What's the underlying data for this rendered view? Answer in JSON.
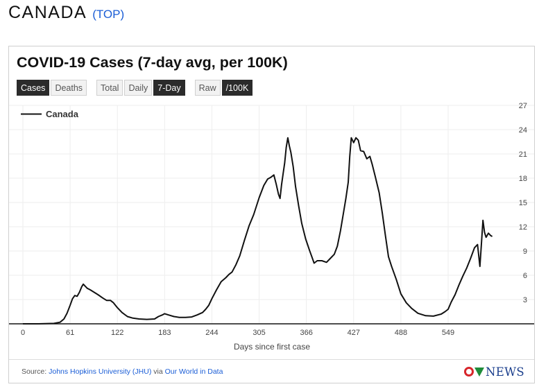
{
  "header": {
    "country": "CANADA",
    "top_link": "(TOP)"
  },
  "card": {
    "title": "COVID-19 Cases (7-day avg, per 100K)",
    "buttons": {
      "cases": "Cases",
      "deaths": "Deaths",
      "total": "Total",
      "daily": "Daily",
      "seven_day": "7-Day",
      "raw": "Raw",
      "per100k": "/100K"
    }
  },
  "footer": {
    "source_prefix": "Source: ",
    "jhu": "Johns Hopkins University (JHU)",
    "via": " via ",
    "owid": "Our World in Data",
    "logo_text": "NEWS"
  },
  "colors": {
    "line": "#111111",
    "grid": "#eeeeee",
    "active_button": "#2b2b2b",
    "link": "#1a5dd6"
  },
  "chart_data": {
    "type": "line",
    "title": "COVID-19 Cases (7-day avg, per 100K)",
    "xlabel": "Days since first case",
    "ylabel": "",
    "xlim": [
      0,
      625
    ],
    "ylim": [
      0,
      27
    ],
    "x_ticks": [
      0,
      61,
      122,
      183,
      244,
      305,
      366,
      427,
      488,
      549
    ],
    "y_ticks": [
      3,
      6,
      9,
      12,
      15,
      18,
      21,
      24,
      27
    ],
    "grid": true,
    "legend": "top-left",
    "series": [
      {
        "name": "Canada",
        "points": [
          [
            0,
            0
          ],
          [
            20,
            0
          ],
          [
            40,
            0.05
          ],
          [
            48,
            0.2
          ],
          [
            53,
            0.6
          ],
          [
            57,
            1.3
          ],
          [
            61,
            2.3
          ],
          [
            64,
            3.1
          ],
          [
            67,
            3.5
          ],
          [
            70,
            3.4
          ],
          [
            73,
            3.9
          ],
          [
            76,
            4.6
          ],
          [
            78,
            4.9
          ],
          [
            80,
            4.7
          ],
          [
            83,
            4.4
          ],
          [
            87,
            4.2
          ],
          [
            92,
            3.9
          ],
          [
            97,
            3.6
          ],
          [
            103,
            3.2
          ],
          [
            108,
            2.9
          ],
          [
            113,
            2.9
          ],
          [
            117,
            2.6
          ],
          [
            122,
            2.0
          ],
          [
            128,
            1.4
          ],
          [
            135,
            0.9
          ],
          [
            142,
            0.7
          ],
          [
            150,
            0.6
          ],
          [
            160,
            0.55
          ],
          [
            170,
            0.6
          ],
          [
            175,
            0.9
          ],
          [
            180,
            1.1
          ],
          [
            183,
            1.25
          ],
          [
            188,
            1.1
          ],
          [
            195,
            0.9
          ],
          [
            202,
            0.8
          ],
          [
            210,
            0.8
          ],
          [
            218,
            0.85
          ],
          [
            225,
            1.1
          ],
          [
            232,
            1.4
          ],
          [
            236,
            1.8
          ],
          [
            240,
            2.3
          ],
          [
            244,
            3.1
          ],
          [
            250,
            4.2
          ],
          [
            256,
            5.2
          ],
          [
            262,
            5.7
          ],
          [
            266,
            6.1
          ],
          [
            270,
            6.4
          ],
          [
            275,
            7.3
          ],
          [
            280,
            8.4
          ],
          [
            286,
            10.3
          ],
          [
            292,
            12.1
          ],
          [
            298,
            13.5
          ],
          [
            305,
            15.6
          ],
          [
            311,
            17.1
          ],
          [
            316,
            17.9
          ],
          [
            320,
            18.1
          ],
          [
            324,
            18.4
          ],
          [
            327,
            17.3
          ],
          [
            330,
            16.0
          ],
          [
            332,
            15.5
          ],
          [
            334,
            17.2
          ],
          [
            336,
            18.6
          ],
          [
            338,
            19.9
          ],
          [
            340,
            21.8
          ],
          [
            342,
            23.0
          ],
          [
            344,
            22.0
          ],
          [
            346,
            21.2
          ],
          [
            349,
            19.4
          ],
          [
            352,
            17.0
          ],
          [
            356,
            14.6
          ],
          [
            360,
            12.4
          ],
          [
            365,
            10.5
          ],
          [
            370,
            9.1
          ],
          [
            373,
            8.3
          ],
          [
            376,
            7.5
          ],
          [
            380,
            7.8
          ],
          [
            386,
            7.8
          ],
          [
            392,
            7.6
          ],
          [
            397,
            8.1
          ],
          [
            402,
            8.6
          ],
          [
            406,
            9.6
          ],
          [
            410,
            11.5
          ],
          [
            414,
            13.8
          ],
          [
            417,
            15.5
          ],
          [
            420,
            17.5
          ],
          [
            422,
            20.7
          ],
          [
            424,
            23.0
          ],
          [
            427,
            22.4
          ],
          [
            430,
            23.0
          ],
          [
            433,
            22.7
          ],
          [
            436,
            21.4
          ],
          [
            440,
            21.3
          ],
          [
            444,
            20.4
          ],
          [
            448,
            20.7
          ],
          [
            451,
            19.7
          ],
          [
            455,
            18.2
          ],
          [
            460,
            16.2
          ],
          [
            464,
            13.7
          ],
          [
            468,
            10.9
          ],
          [
            472,
            8.3
          ],
          [
            476,
            7.1
          ],
          [
            482,
            5.5
          ],
          [
            488,
            3.7
          ],
          [
            495,
            2.6
          ],
          [
            502,
            1.9
          ],
          [
            510,
            1.3
          ],
          [
            520,
            1.0
          ],
          [
            530,
            0.95
          ],
          [
            540,
            1.2
          ],
          [
            545,
            1.5
          ],
          [
            549,
            1.8
          ],
          [
            553,
            2.7
          ],
          [
            558,
            3.6
          ],
          [
            563,
            4.8
          ],
          [
            568,
            5.9
          ],
          [
            573,
            6.9
          ],
          [
            578,
            8.1
          ],
          [
            583,
            9.4
          ],
          [
            587,
            9.8
          ],
          [
            590,
            7.1
          ],
          [
            592,
            9.9
          ],
          [
            594,
            12.8
          ],
          [
            596,
            11.3
          ],
          [
            598,
            10.7
          ],
          [
            601,
            11.2
          ],
          [
            604,
            10.9
          ],
          [
            606,
            10.8
          ]
        ]
      }
    ]
  }
}
